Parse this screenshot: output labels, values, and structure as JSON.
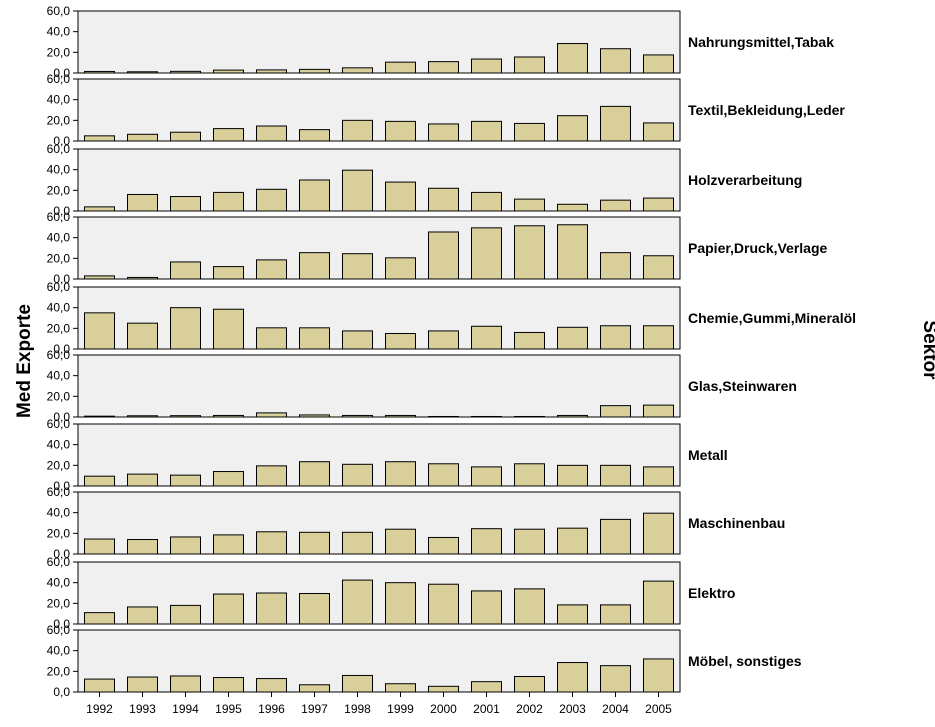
{
  "chart_data": {
    "type": "bar",
    "layout": "faceted-vertical",
    "ylabel": "Med Exporte",
    "facet_label": "Sektor",
    "categories": [
      "1992",
      "1993",
      "1994",
      "1995",
      "1996",
      "1997",
      "1998",
      "1999",
      "2000",
      "2001",
      "2002",
      "2003",
      "2004",
      "2005"
    ],
    "ylim": [
      0,
      60
    ],
    "yticks": [
      "0,0",
      "20,0",
      "40,0",
      "60,0"
    ],
    "ytick_values": [
      0,
      20,
      40,
      60
    ],
    "bar_color": "#d8cf9a",
    "panel_background": "#f0f0f0",
    "grid": false,
    "series": [
      {
        "name": "Nahrungsmittel,Tabak",
        "values": [
          1.5,
          1.2,
          1.6,
          2.8,
          3.0,
          3.5,
          5.0,
          10.5,
          11.0,
          13.5,
          15.5,
          28.5,
          23.5,
          17.5
        ]
      },
      {
        "name": "Textil,Bekleidung,Leder",
        "values": [
          5.0,
          6.5,
          8.5,
          12.0,
          14.5,
          11.0,
          20.0,
          19.0,
          16.5,
          19.0,
          17.0,
          24.5,
          33.5,
          17.5
        ]
      },
      {
        "name": "Holzverarbeitung",
        "values": [
          4.0,
          16.0,
          14.0,
          18.0,
          21.0,
          30.0,
          39.5,
          28.0,
          22.0,
          18.0,
          11.5,
          6.5,
          10.5,
          12.5
        ]
      },
      {
        "name": "Papier,Druck,Verlage",
        "values": [
          3.0,
          1.5,
          16.5,
          12.0,
          18.5,
          25.5,
          24.5,
          20.5,
          45.5,
          49.5,
          51.5,
          52.5,
          25.5,
          22.5
        ]
      },
      {
        "name": "Chemie,Gummi,Mineralöl",
        "values": [
          35.0,
          25.0,
          40.0,
          38.5,
          20.5,
          20.5,
          17.5,
          15.0,
          17.5,
          22.0,
          16.0,
          21.0,
          22.5,
          22.5
        ]
      },
      {
        "name": "Glas,Steinwaren",
        "values": [
          0.8,
          1.2,
          1.3,
          1.5,
          4.0,
          2.0,
          1.5,
          1.5,
          0.5,
          0.5,
          0.5,
          1.5,
          11.0,
          11.5
        ]
      },
      {
        "name": "Metall",
        "values": [
          9.5,
          11.5,
          10.5,
          14.0,
          19.5,
          23.5,
          21.0,
          23.5,
          21.5,
          18.5,
          21.5,
          20.0,
          20.0,
          18.5
        ]
      },
      {
        "name": "Maschinenbau",
        "values": [
          14.5,
          14.0,
          16.5,
          18.5,
          21.5,
          21.0,
          21.0,
          24.0,
          16.0,
          24.5,
          24.0,
          25.0,
          33.5,
          39.5
        ]
      },
      {
        "name": "Elektro",
        "values": [
          11.0,
          16.5,
          18.0,
          29.0,
          30.0,
          29.5,
          42.5,
          40.0,
          38.5,
          32.0,
          34.0,
          18.5,
          18.5,
          41.5
        ]
      },
      {
        "name": "Möbel, sonstiges",
        "values": [
          12.5,
          14.5,
          15.5,
          14.0,
          13.0,
          7.0,
          16.0,
          8.0,
          5.5,
          10.0,
          15.0,
          28.5,
          25.5,
          32.0
        ]
      }
    ]
  }
}
